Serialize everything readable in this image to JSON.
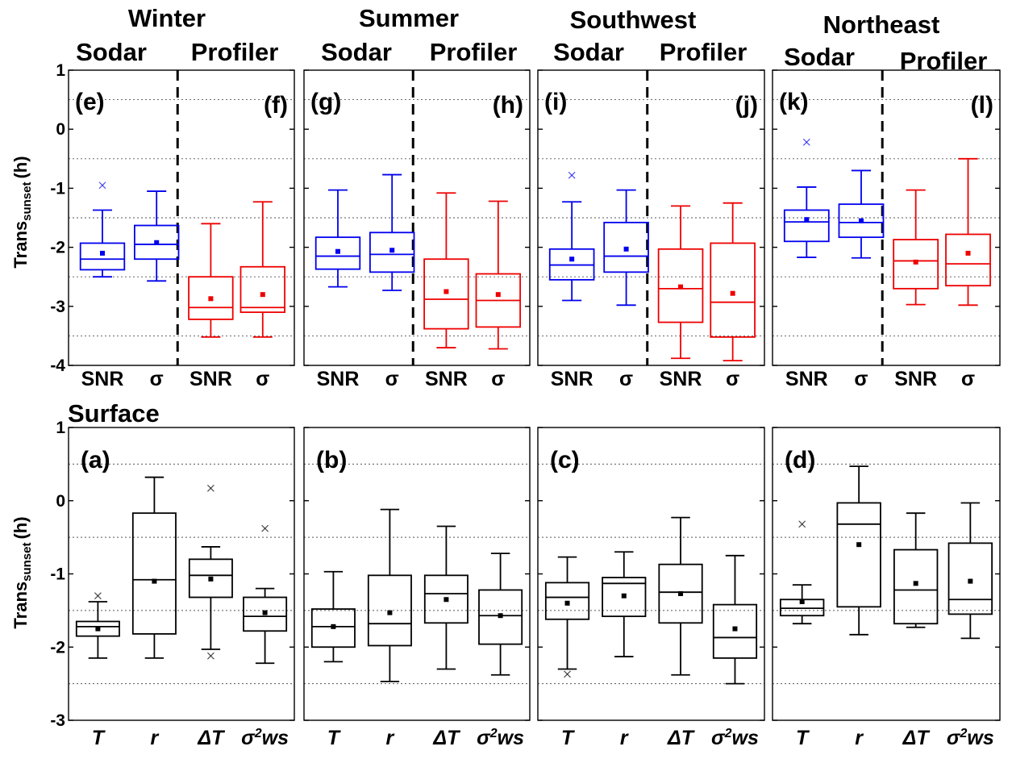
{
  "figure": {
    "seasons": [
      "Winter",
      "Summer",
      "Southwest",
      "Northeast"
    ],
    "row_titles": {
      "top_left": "Sodar",
      "top_right": "Profiler",
      "bottom": "Surface"
    },
    "ylabel_main": "Trans",
    "ylabel_sub": "sunset",
    "ylabel_unit": "(h)"
  },
  "chart_data": [
    {
      "type": "box",
      "row": "top",
      "ylim": [
        -4,
        1
      ],
      "yticks": [
        "1",
        "0",
        "-1",
        "-2",
        "-3",
        "-4"
      ],
      "categories": [
        "SNR",
        "σ",
        "SNR",
        "σ"
      ],
      "series_colors": {
        "Sodar": "#0000ee",
        "Profiler": "#ee0000"
      },
      "panels": [
        {
          "season": "Winter",
          "labels": [
            "(e)",
            "(f)"
          ],
          "boxes": [
            {
              "group": "Sodar",
              "whisker_low": -2.5,
              "q1": -2.38,
              "median": -2.2,
              "q3": -1.93,
              "whisker_high": -1.37,
              "mean": -2.1,
              "outliers_high": [
                -0.95
              ],
              "outliers_low": []
            },
            {
              "group": "Sodar",
              "whisker_low": -2.57,
              "q1": -2.2,
              "median": -1.95,
              "q3": -1.63,
              "whisker_high": -1.05,
              "mean": -1.92,
              "outliers_high": [],
              "outliers_low": []
            },
            {
              "group": "Profiler",
              "whisker_low": -3.52,
              "q1": -3.22,
              "median": -3.02,
              "q3": -2.5,
              "whisker_high": -1.6,
              "mean": -2.87,
              "outliers_high": [],
              "outliers_low": []
            },
            {
              "group": "Profiler",
              "whisker_low": -3.52,
              "q1": -3.1,
              "median": -3.02,
              "q3": -2.33,
              "whisker_high": -1.23,
              "mean": -2.8,
              "outliers_high": [],
              "outliers_low": []
            }
          ]
        },
        {
          "season": "Summer",
          "labels": [
            "(g)",
            "(h)"
          ],
          "boxes": [
            {
              "group": "Sodar",
              "whisker_low": -2.67,
              "q1": -2.37,
              "median": -2.15,
              "q3": -1.83,
              "whisker_high": -1.03,
              "mean": -2.07,
              "outliers_high": [],
              "outliers_low": []
            },
            {
              "group": "Sodar",
              "whisker_low": -2.73,
              "q1": -2.42,
              "median": -2.12,
              "q3": -1.75,
              "whisker_high": -0.77,
              "mean": -2.05,
              "outliers_high": [],
              "outliers_low": []
            },
            {
              "group": "Profiler",
              "whisker_low": -3.7,
              "q1": -3.38,
              "median": -2.88,
              "q3": -2.2,
              "whisker_high": -1.08,
              "mean": -2.75,
              "outliers_high": [],
              "outliers_low": []
            },
            {
              "group": "Profiler",
              "whisker_low": -3.72,
              "q1": -3.35,
              "median": -2.9,
              "q3": -2.45,
              "whisker_high": -1.22,
              "mean": -2.8,
              "outliers_high": [],
              "outliers_low": []
            }
          ]
        },
        {
          "season": "Southwest",
          "labels": [
            "(i)",
            "(j)"
          ],
          "boxes": [
            {
              "group": "Sodar",
              "whisker_low": -2.9,
              "q1": -2.55,
              "median": -2.3,
              "q3": -2.03,
              "whisker_high": -1.23,
              "mean": -2.2,
              "outliers_high": [
                -0.78
              ],
              "outliers_low": []
            },
            {
              "group": "Sodar",
              "whisker_low": -2.98,
              "q1": -2.42,
              "median": -2.15,
              "q3": -1.58,
              "whisker_high": -1.03,
              "mean": -2.03,
              "outliers_high": [],
              "outliers_low": []
            },
            {
              "group": "Profiler",
              "whisker_low": -3.88,
              "q1": -3.27,
              "median": -2.7,
              "q3": -2.03,
              "whisker_high": -1.3,
              "mean": -2.67,
              "outliers_high": [],
              "outliers_low": []
            },
            {
              "group": "Profiler",
              "whisker_low": -3.92,
              "q1": -3.52,
              "median": -2.93,
              "q3": -1.93,
              "whisker_high": -1.25,
              "mean": -2.78,
              "outliers_high": [],
              "outliers_low": []
            }
          ]
        },
        {
          "season": "Northeast",
          "labels": [
            "(k)",
            "(l)"
          ],
          "boxes": [
            {
              "group": "Sodar",
              "whisker_low": -2.17,
              "q1": -1.9,
              "median": -1.57,
              "q3": -1.37,
              "whisker_high": -0.98,
              "mean": -1.53,
              "outliers_high": [
                -0.22
              ],
              "outliers_low": []
            },
            {
              "group": "Sodar",
              "whisker_low": -2.18,
              "q1": -1.83,
              "median": -1.58,
              "q3": -1.27,
              "whisker_high": -0.7,
              "mean": -1.55,
              "outliers_high": [],
              "outliers_low": []
            },
            {
              "group": "Profiler",
              "whisker_low": -2.97,
              "q1": -2.7,
              "median": -2.23,
              "q3": -1.87,
              "whisker_high": -1.03,
              "mean": -2.25,
              "outliers_high": [],
              "outliers_low": []
            },
            {
              "group": "Profiler",
              "whisker_low": -2.98,
              "q1": -2.65,
              "median": -2.28,
              "q3": -1.78,
              "whisker_high": -0.5,
              "mean": -2.1,
              "outliers_high": [],
              "outliers_low": []
            }
          ]
        }
      ]
    },
    {
      "type": "box",
      "row": "bottom",
      "ylim": [
        -3,
        1
      ],
      "yticks": [
        "1",
        "0",
        "-1",
        "-2",
        "-3"
      ],
      "categories": [
        "T",
        "r",
        "ΔT",
        "σ²ws"
      ],
      "series_colors": {
        "Surface": "#000000"
      },
      "panels": [
        {
          "season": "Winter",
          "labels": [
            "(a)"
          ],
          "boxes": [
            {
              "whisker_low": -2.15,
              "q1": -1.85,
              "median": -1.72,
              "q3": -1.65,
              "whisker_high": -1.38,
              "mean": -1.75,
              "outliers_high": [
                -1.3
              ],
              "outliers_low": []
            },
            {
              "whisker_low": -2.15,
              "q1": -1.82,
              "median": -1.08,
              "q3": -0.17,
              "whisker_high": 0.32,
              "mean": -1.1,
              "outliers_high": [],
              "outliers_low": []
            },
            {
              "whisker_low": -2.03,
              "q1": -1.32,
              "median": -1.02,
              "q3": -0.8,
              "whisker_high": -0.63,
              "mean": -1.07,
              "outliers_high": [
                0.17
              ],
              "outliers_low": [
                -2.12
              ]
            },
            {
              "whisker_low": -2.22,
              "q1": -1.78,
              "median": -1.58,
              "q3": -1.32,
              "whisker_high": -1.2,
              "mean": -1.53,
              "outliers_high": [
                -0.38
              ],
              "outliers_low": []
            }
          ]
        },
        {
          "season": "Summer",
          "labels": [
            "(b)"
          ],
          "boxes": [
            {
              "whisker_low": -2.2,
              "q1": -2.0,
              "median": -1.72,
              "q3": -1.48,
              "whisker_high": -0.97,
              "mean": -1.72,
              "outliers_high": [],
              "outliers_low": []
            },
            {
              "whisker_low": -2.47,
              "q1": -1.98,
              "median": -1.68,
              "q3": -1.02,
              "whisker_high": -0.12,
              "mean": -1.53,
              "outliers_high": [],
              "outliers_low": []
            },
            {
              "whisker_low": -2.3,
              "q1": -1.67,
              "median": -1.27,
              "q3": -1.02,
              "whisker_high": -0.35,
              "mean": -1.35,
              "outliers_high": [],
              "outliers_low": []
            },
            {
              "whisker_low": -2.38,
              "q1": -1.96,
              "median": -1.57,
              "q3": -1.22,
              "whisker_high": -0.72,
              "mean": -1.57,
              "outliers_high": [],
              "outliers_low": []
            }
          ]
        },
        {
          "season": "Southwest",
          "labels": [
            "(c)"
          ],
          "boxes": [
            {
              "whisker_low": -2.3,
              "q1": -1.62,
              "median": -1.32,
              "q3": -1.12,
              "whisker_high": -0.77,
              "mean": -1.4,
              "outliers_high": [],
              "outliers_low": [
                -2.37
              ]
            },
            {
              "whisker_low": -2.13,
              "q1": -1.58,
              "median": -1.13,
              "q3": -1.05,
              "whisker_high": -0.7,
              "mean": -1.3,
              "outliers_high": [],
              "outliers_low": []
            },
            {
              "whisker_low": -2.38,
              "q1": -1.67,
              "median": -1.25,
              "q3": -0.87,
              "whisker_high": -0.23,
              "mean": -1.27,
              "outliers_high": [],
              "outliers_low": []
            },
            {
              "whisker_low": -2.5,
              "q1": -2.15,
              "median": -1.87,
              "q3": -1.42,
              "whisker_high": -0.75,
              "mean": -1.75,
              "outliers_high": [],
              "outliers_low": []
            }
          ]
        },
        {
          "season": "Northeast",
          "labels": [
            "(d)"
          ],
          "boxes": [
            {
              "whisker_low": -1.68,
              "q1": -1.57,
              "median": -1.47,
              "q3": -1.35,
              "whisker_high": -1.15,
              "mean": -1.38,
              "outliers_high": [
                -0.32
              ],
              "outliers_low": []
            },
            {
              "whisker_low": -1.83,
              "q1": -1.45,
              "median": -0.32,
              "q3": -0.03,
              "whisker_high": 0.47,
              "mean": -0.6,
              "outliers_high": [],
              "outliers_low": []
            },
            {
              "whisker_low": -1.73,
              "q1": -1.68,
              "median": -1.22,
              "q3": -0.67,
              "whisker_high": -0.17,
              "mean": -1.13,
              "outliers_high": [],
              "outliers_low": []
            },
            {
              "whisker_low": -1.88,
              "q1": -1.55,
              "median": -1.35,
              "q3": -0.58,
              "whisker_high": -0.03,
              "mean": -1.1,
              "outliers_high": [],
              "outliers_low": []
            }
          ]
        }
      ]
    }
  ]
}
